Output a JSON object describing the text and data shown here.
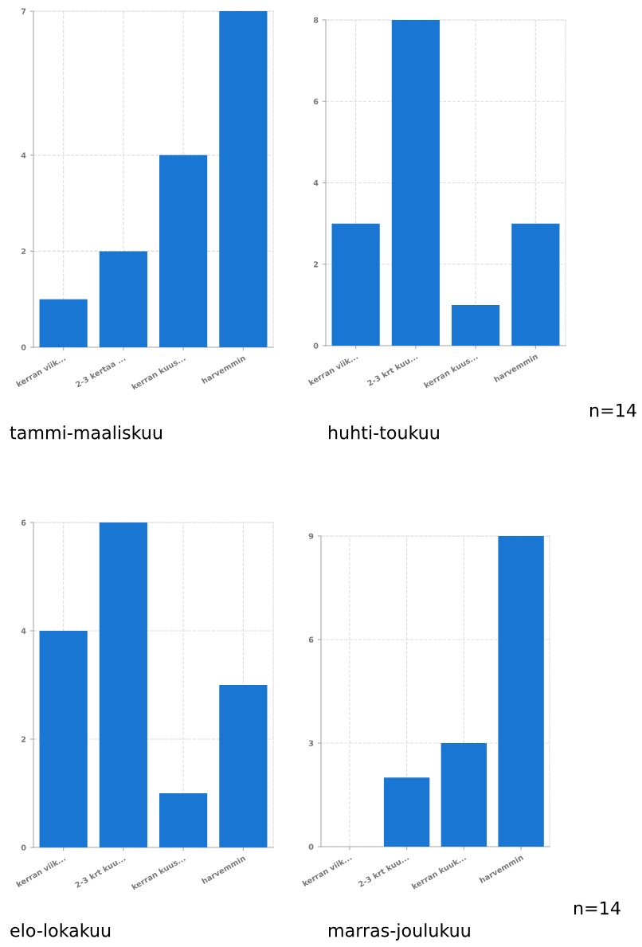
{
  "chart_data": [
    {
      "type": "bar",
      "title": "tammi-maaliskuu",
      "categories": [
        "kerran viik...",
        "2-3 kertaa ...",
        "kerran kuus...",
        "harvemmin"
      ],
      "values": [
        1,
        2,
        4,
        7
      ],
      "color": "#1976d2",
      "ylim": [
        0,
        7
      ],
      "yticks": [
        0,
        2,
        4,
        7
      ],
      "grid": true
    },
    {
      "type": "bar",
      "title": "huhti-toukuu",
      "categories": [
        "kerran viik...",
        "2-3 krt kuu...",
        "kerran kuus...",
        "harvemmin"
      ],
      "values": [
        3,
        8,
        1,
        3
      ],
      "color": "#1976d2",
      "ylim": [
        0,
        8
      ],
      "yticks": [
        0,
        2,
        4,
        6,
        8
      ],
      "grid": true,
      "annotations": [
        "n=14"
      ]
    },
    {
      "type": "bar",
      "title": "elo-lokakuu",
      "categories": [
        "kerran viik...",
        "2-3 krt kuu...",
        "kerran kuus...",
        "harvemmin"
      ],
      "values": [
        4,
        6,
        1,
        3
      ],
      "color": "#1976d2",
      "ylim": [
        0,
        6
      ],
      "yticks": [
        0,
        2,
        4,
        6
      ],
      "grid": true
    },
    {
      "type": "bar",
      "title": "marras-joulukuu",
      "categories": [
        "kerran viik...",
        "2-3 krt kuu...",
        "kerran kuuk...",
        "harvemmin"
      ],
      "values": [
        0,
        2,
        3,
        9
      ],
      "color": "#1976d2",
      "ylim": [
        0,
        9
      ],
      "yticks": [
        0,
        3,
        6,
        9
      ],
      "grid": true,
      "annotations": [
        "n=14"
      ]
    }
  ]
}
